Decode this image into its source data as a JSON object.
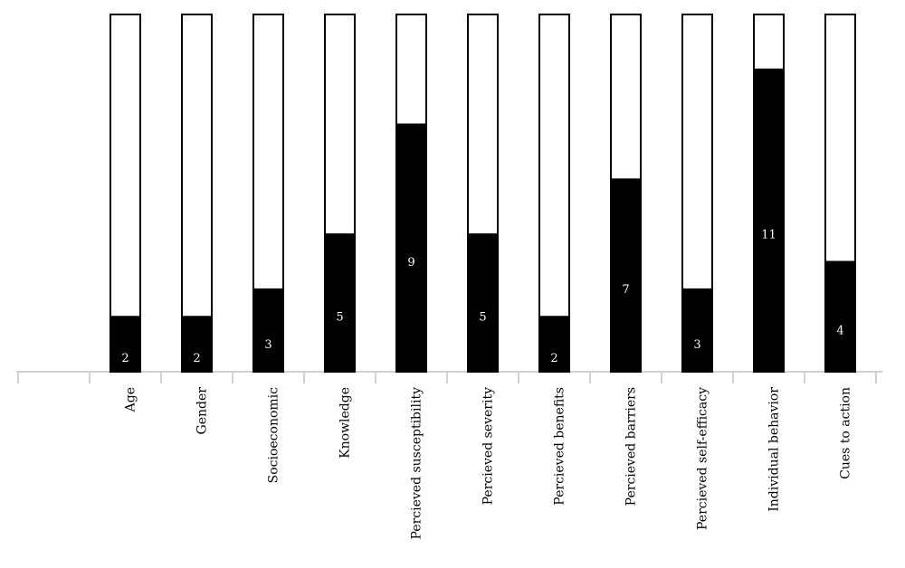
{
  "chart_data": {
    "type": "stacked-bar",
    "categories": [
      "Age",
      "Gender",
      "Socioeconomic",
      "Knowledge",
      "Percieved susceptibility",
      "Percieved severity",
      "Percieved benefits",
      "Percieved barriers",
      "Percieved self-efficacy",
      "Individual behavior",
      "Cues to action"
    ],
    "series": [
      {
        "color": "#000000",
        "values": [
          2,
          2,
          3,
          5,
          9,
          5,
          2,
          7,
          3,
          11,
          4
        ]
      },
      {
        "color": "#ffffff",
        "values": [
          11,
          11,
          10,
          8,
          4,
          8,
          11,
          6,
          10,
          2,
          9
        ]
      }
    ],
    "ylim": [
      0,
      13
    ]
  }
}
